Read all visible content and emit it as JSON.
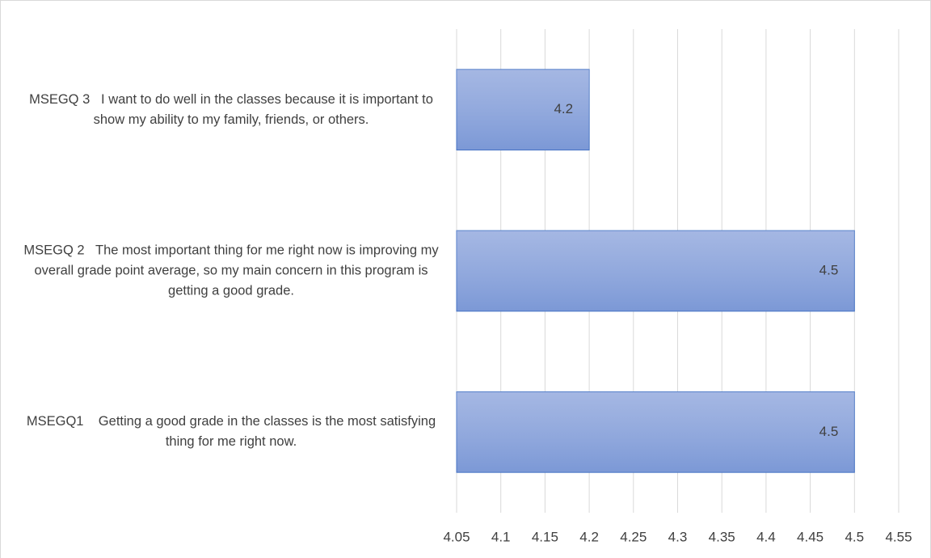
{
  "chart_data": {
    "type": "bar",
    "orientation": "horizontal",
    "categories": [
      "MSEGQ 3   I want to do well in the classes because it is important to show my ability to my family, friends, or others.",
      "MSEGQ 2   The most important thing for me right now is improving my overall grade point average, so my main concern in this program is getting a good grade.",
      "MSEGQ1    Getting a good grade in the classes is the most satisfying thing for me right now."
    ],
    "values": [
      4.2,
      4.5,
      4.5
    ],
    "color": "#8ea5dc",
    "xlim": [
      4.05,
      4.55
    ],
    "xticks": [
      4.05,
      4.1,
      4.15,
      4.2,
      4.25,
      4.3,
      4.35,
      4.4,
      4.45,
      4.5,
      4.55
    ],
    "grid": true
  }
}
